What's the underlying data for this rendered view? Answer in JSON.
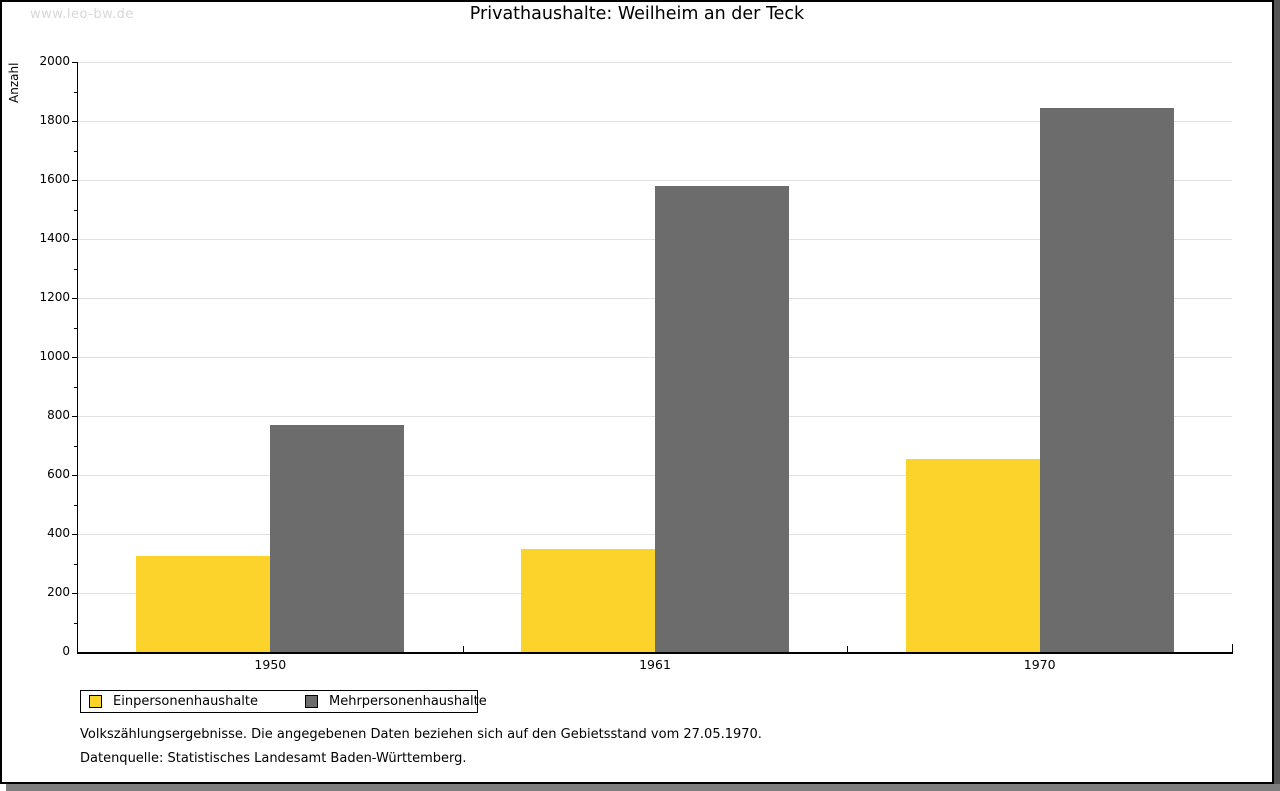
{
  "watermark": "www.leo-bw.de",
  "title": "Privathaushalte: Weilheim an der Teck",
  "chart_data": {
    "type": "bar",
    "title": "Privathaushalte: Weilheim an der Teck",
    "xlabel": "",
    "ylabel": "Anzahl",
    "categories": [
      "1950",
      "1961",
      "1970"
    ],
    "series": [
      {
        "name": "Einpersonenhaushalte",
        "color": "#fcd32b",
        "values": [
          325,
          350,
          655
        ]
      },
      {
        "name": "Mehrpersonenhaushalte",
        "color": "#6c6c6c",
        "values": [
          770,
          1580,
          1845
        ]
      }
    ],
    "ylim": [
      0,
      2000
    ],
    "ytick_step": 200,
    "yminor_step": 100,
    "yticks": [
      0,
      200,
      400,
      600,
      800,
      1000,
      1200,
      1400,
      1600,
      1800,
      2000
    ],
    "grid": true,
    "legend_position": "bottom-left"
  },
  "footer": {
    "line1": "Volkszählungsergebnisse. Die angegebenen Daten beziehen sich auf den Gebietsstand vom 27.05.1970.",
    "line2": "Datenquelle: Statistisches Landesamt Baden-Württemberg."
  },
  "colors": {
    "grid": "#e0e0e0",
    "axis": "#000000",
    "watermark": "#d8d8d8",
    "frame": "#000000",
    "shadow_right": "#565656",
    "shadow_bottom": "#7e7e7e"
  }
}
